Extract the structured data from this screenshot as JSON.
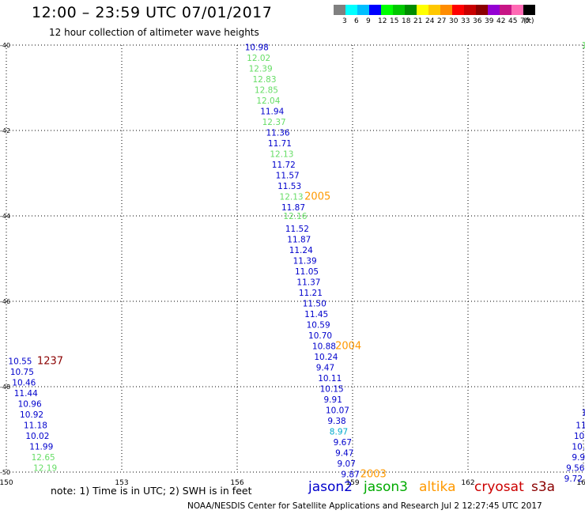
{
  "header": {
    "title": "12:00 – 23:59 UTC 07/01/2017",
    "subtitle": "12 hour collection of altimeter wave heights"
  },
  "color_scale": {
    "colors": [
      "#808080",
      "#00ffff",
      "#00bfff",
      "#0000ff",
      "#00ff00",
      "#00c800",
      "#008c00",
      "#ffff00",
      "#ffc800",
      "#ff8c00",
      "#ff0000",
      "#c80000",
      "#8b0000",
      "#9400d3",
      "#c71585",
      "#ff69b4",
      "#000000"
    ],
    "labels": [
      "3",
      "6",
      "9",
      "12",
      "15",
      "18",
      "21",
      "24",
      "27",
      "30",
      "33",
      "36",
      "39",
      "42",
      "45",
      "70",
      "(ft)"
    ]
  },
  "note": "note: 1) Time is in UTC; 2) SWH is in feet",
  "legend": [
    {
      "name": "jason2",
      "color": "#0000cc"
    },
    {
      "name": "jason3",
      "color": "#00aa00"
    },
    {
      "name": "altika",
      "color": "#ff9900"
    },
    {
      "name": "cryosat",
      "color": "#cc0000"
    },
    {
      "name": "s3a",
      "color": "#8b0000"
    }
  ],
  "footer": "NOAA/NESDIS Center for Satellite Applications and Research    Jul  2 12:27:45 UTC 2017",
  "chart_data": {
    "type": "scatter",
    "xlim": [
      150,
      165
    ],
    "ylim": [
      -50,
      -40
    ],
    "x_ticks": [
      "150",
      "153",
      "156",
      "159",
      "162",
      "165"
    ],
    "y_ticks": [
      "-40",
      "-42",
      "-44",
      "-46",
      "-48",
      "-50"
    ],
    "grid": true,
    "series": [
      {
        "name": "jason2",
        "color": "#0000cc"
      },
      {
        "name": "jason3",
        "color": "#66dd66"
      },
      {
        "name": "altika",
        "color": "#ff9900"
      },
      {
        "name": "s3a",
        "color": "#8b0000"
      },
      {
        "name": "cyan",
        "color": "#00aacc"
      }
    ],
    "points": [
      {
        "lon": 156.2,
        "lat": -40.05,
        "label": "10.98",
        "series": "jason2"
      },
      {
        "lon": 156.25,
        "lat": -40.3,
        "label": "12.02",
        "series": "jason3"
      },
      {
        "lon": 156.3,
        "lat": -40.55,
        "label": "12.39",
        "series": "jason3"
      },
      {
        "lon": 156.4,
        "lat": -40.8,
        "label": "12.83",
        "series": "jason3"
      },
      {
        "lon": 156.45,
        "lat": -41.05,
        "label": "12.85",
        "series": "jason3"
      },
      {
        "lon": 156.5,
        "lat": -41.3,
        "label": "12.04",
        "series": "jason3"
      },
      {
        "lon": 156.6,
        "lat": -41.55,
        "label": "11.94",
        "series": "jason2"
      },
      {
        "lon": 156.65,
        "lat": -41.8,
        "label": "12.37",
        "series": "jason3"
      },
      {
        "lon": 156.75,
        "lat": -42.05,
        "label": "11.36",
        "series": "jason2"
      },
      {
        "lon": 156.8,
        "lat": -42.3,
        "label": "11.71",
        "series": "jason2"
      },
      {
        "lon": 156.85,
        "lat": -42.55,
        "label": "12.13",
        "series": "jason3"
      },
      {
        "lon": 156.9,
        "lat": -42.8,
        "label": "11.72",
        "series": "jason2"
      },
      {
        "lon": 157.0,
        "lat": -43.05,
        "label": "11.57",
        "series": "jason2"
      },
      {
        "lon": 157.05,
        "lat": -43.3,
        "label": "11.53",
        "series": "jason2"
      },
      {
        "lon": 157.1,
        "lat": -43.55,
        "label": "12.13",
        "series": "jason3"
      },
      {
        "lon": 157.75,
        "lat": -43.55,
        "label": "2005",
        "series": "altika"
      },
      {
        "lon": 157.15,
        "lat": -43.8,
        "label": "11.87",
        "series": "jason2"
      },
      {
        "lon": 157.2,
        "lat": -44.0,
        "label": "12.16",
        "series": "jason3"
      },
      {
        "lon": 157.25,
        "lat": -44.3,
        "label": "11.52",
        "series": "jason2"
      },
      {
        "lon": 157.3,
        "lat": -44.55,
        "label": "11.87",
        "series": "jason2"
      },
      {
        "lon": 157.35,
        "lat": -44.8,
        "label": "11.24",
        "series": "jason2"
      },
      {
        "lon": 157.45,
        "lat": -45.05,
        "label": "11.39",
        "series": "jason2"
      },
      {
        "lon": 157.5,
        "lat": -45.3,
        "label": "11.05",
        "series": "jason2"
      },
      {
        "lon": 157.55,
        "lat": -45.55,
        "label": "11.37",
        "series": "jason2"
      },
      {
        "lon": 157.6,
        "lat": -45.8,
        "label": "11.21",
        "series": "jason2"
      },
      {
        "lon": 157.7,
        "lat": -46.05,
        "label": "11.50",
        "series": "jason2"
      },
      {
        "lon": 157.75,
        "lat": -46.3,
        "label": "11.45",
        "series": "jason2"
      },
      {
        "lon": 157.8,
        "lat": -46.55,
        "label": "10.59",
        "series": "jason2"
      },
      {
        "lon": 157.85,
        "lat": -46.8,
        "label": "10.70",
        "series": "jason2"
      },
      {
        "lon": 157.95,
        "lat": -47.05,
        "label": "10.88",
        "series": "jason2"
      },
      {
        "lon": 158.55,
        "lat": -47.05,
        "label": "2004",
        "series": "altika"
      },
      {
        "lon": 158.0,
        "lat": -47.3,
        "label": "10.24",
        "series": "jason2"
      },
      {
        "lon": 158.05,
        "lat": -47.55,
        "label": "9.47",
        "series": "jason2"
      },
      {
        "lon": 158.1,
        "lat": -47.8,
        "label": "10.11",
        "series": "jason2"
      },
      {
        "lon": 158.15,
        "lat": -48.05,
        "label": "10.15",
        "series": "jason2"
      },
      {
        "lon": 158.25,
        "lat": -48.3,
        "label": "9.91",
        "series": "jason2"
      },
      {
        "lon": 158.3,
        "lat": -48.55,
        "label": "10.07",
        "series": "jason2"
      },
      {
        "lon": 158.35,
        "lat": -48.8,
        "label": "9.38",
        "series": "jason2"
      },
      {
        "lon": 158.4,
        "lat": -49.05,
        "label": "8.97",
        "series": "cyan"
      },
      {
        "lon": 158.5,
        "lat": -49.3,
        "label": "9.67",
        "series": "jason2"
      },
      {
        "lon": 158.55,
        "lat": -49.55,
        "label": "9.47",
        "series": "jason2"
      },
      {
        "lon": 158.6,
        "lat": -49.8,
        "label": "9.07",
        "series": "jason2"
      },
      {
        "lon": 158.7,
        "lat": -50.05,
        "label": "9.87",
        "series": "jason2"
      },
      {
        "lon": 159.2,
        "lat": -50.05,
        "label": "2003",
        "series": "altika"
      },
      {
        "lon": 150.05,
        "lat": -47.4,
        "label": "10.55",
        "series": "jason2"
      },
      {
        "lon": 150.8,
        "lat": -47.4,
        "label": "1237",
        "series": "s3a"
      },
      {
        "lon": 150.1,
        "lat": -47.65,
        "label": "10.75",
        "series": "jason2"
      },
      {
        "lon": 150.15,
        "lat": -47.9,
        "label": "10.46",
        "series": "jason2"
      },
      {
        "lon": 150.2,
        "lat": -48.15,
        "label": "11.44",
        "series": "jason2"
      },
      {
        "lon": 150.3,
        "lat": -48.4,
        "label": "10.96",
        "series": "jason2"
      },
      {
        "lon": 150.35,
        "lat": -48.65,
        "label": "10.92",
        "series": "jason2"
      },
      {
        "lon": 150.45,
        "lat": -48.9,
        "label": "11.18",
        "series": "jason2"
      },
      {
        "lon": 150.5,
        "lat": -49.15,
        "label": "10.02",
        "series": "jason2"
      },
      {
        "lon": 150.6,
        "lat": -49.4,
        "label": "11.99",
        "series": "jason2"
      },
      {
        "lon": 150.65,
        "lat": -49.65,
        "label": "12.65",
        "series": "jason3"
      },
      {
        "lon": 150.7,
        "lat": -49.9,
        "label": "12.19",
        "series": "jason3"
      },
      {
        "lon": 164.95,
        "lat": -40.0,
        "label": "16",
        "series": "jason3"
      },
      {
        "lon": 164.95,
        "lat": -48.6,
        "label": "1",
        "series": "jason2"
      },
      {
        "lon": 164.8,
        "lat": -48.9,
        "label": "11",
        "series": "jason2"
      },
      {
        "lon": 164.75,
        "lat": -49.15,
        "label": "10.",
        "series": "jason2"
      },
      {
        "lon": 164.7,
        "lat": -49.4,
        "label": "10.2",
        "series": "jason2"
      },
      {
        "lon": 164.7,
        "lat": -49.65,
        "label": "9.99",
        "series": "jason2"
      },
      {
        "lon": 164.55,
        "lat": -49.9,
        "label": "9.56",
        "series": "jason2"
      },
      {
        "lon": 164.5,
        "lat": -50.15,
        "label": "9.72",
        "series": "jason2"
      }
    ]
  }
}
